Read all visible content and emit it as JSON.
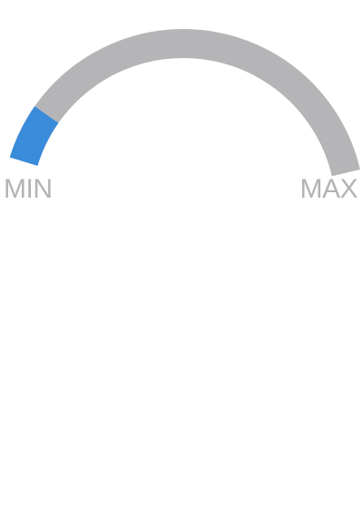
{
  "gauge": {
    "value_fraction": 0.12,
    "min_label": "MIN",
    "max_label": "MAX",
    "colors": {
      "track": "#b5b5b7",
      "fill": "#3a8bd9",
      "label": "#b3b3b3",
      "background": "#ffffff"
    }
  }
}
